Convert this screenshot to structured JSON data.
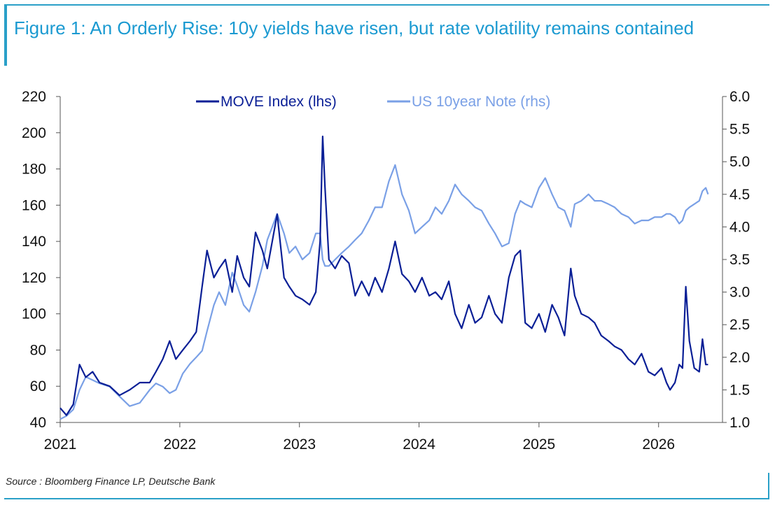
{
  "title": "Figure 1: An Orderly Rise: 10y yields have risen, but rate volatility remains contained",
  "source": "Source : Bloomberg Finance LP, Deutsche Bank",
  "colors": {
    "accent": "#1b9ad1",
    "move": "#0a1f96",
    "yield": "#7aa0e6"
  },
  "chart_data": {
    "type": "line",
    "title": "",
    "xlabel": "",
    "ylabel_left": "",
    "ylabel_right": "",
    "x_range": [
      "2021-01-01",
      "2026-07-15"
    ],
    "x_ticks": [
      "2021",
      "2022",
      "2023",
      "2024",
      "2025",
      "2026"
    ],
    "y_left": {
      "range": [
        40,
        220
      ],
      "ticks": [
        "40",
        "60",
        "80",
        "100",
        "120",
        "140",
        "160",
        "180",
        "200",
        "220"
      ]
    },
    "y_right": {
      "range": [
        1.0,
        6.0
      ],
      "ticks": [
        "1.0",
        "1.5",
        "2.0",
        "2.5",
        "3.0",
        "3.5",
        "4.0",
        "4.5",
        "5.0",
        "5.5",
        "6.0"
      ]
    },
    "legend_position": "top-center",
    "grid": false,
    "series": [
      {
        "name": "MOVE Index (lhs)",
        "axis": "left",
        "color": "#0a1f96",
        "x": [
          "2021-01-01",
          "2021-01-20",
          "2021-02-10",
          "2021-03-01",
          "2021-03-20",
          "2021-04-10",
          "2021-05-01",
          "2021-06-01",
          "2021-07-01",
          "2021-08-01",
          "2021-09-01",
          "2021-10-01",
          "2021-10-20",
          "2021-11-10",
          "2021-12-01",
          "2021-12-20",
          "2022-01-10",
          "2022-02-01",
          "2022-02-20",
          "2022-03-10",
          "2022-03-25",
          "2022-04-15",
          "2022-05-01",
          "2022-05-20",
          "2022-06-10",
          "2022-06-25",
          "2022-07-15",
          "2022-08-01",
          "2022-08-20",
          "2022-09-10",
          "2022-09-25",
          "2022-10-10",
          "2022-10-25",
          "2022-11-15",
          "2022-12-01",
          "2022-12-20",
          "2023-01-10",
          "2023-02-01",
          "2023-02-20",
          "2023-03-05",
          "2023-03-13",
          "2023-03-20",
          "2023-04-01",
          "2023-04-20",
          "2023-05-10",
          "2023-06-01",
          "2023-06-20",
          "2023-07-10",
          "2023-08-01",
          "2023-08-20",
          "2023-09-10",
          "2023-10-01",
          "2023-10-20",
          "2023-11-10",
          "2023-12-01",
          "2023-12-20",
          "2024-01-10",
          "2024-02-01",
          "2024-02-20",
          "2024-03-10",
          "2024-04-01",
          "2024-04-20",
          "2024-05-10",
          "2024-06-01",
          "2024-06-20",
          "2024-07-10",
          "2024-08-01",
          "2024-08-20",
          "2024-09-10",
          "2024-10-01",
          "2024-10-20",
          "2024-11-05",
          "2024-11-20",
          "2024-12-10",
          "2025-01-01",
          "2025-01-20",
          "2025-02-10",
          "2025-03-01",
          "2025-03-20",
          "2025-04-08",
          "2025-04-20",
          "2025-05-10",
          "2025-06-01",
          "2025-06-20",
          "2025-07-10",
          "2025-08-01",
          "2025-08-20",
          "2025-09-10",
          "2025-10-01",
          "2025-10-20",
          "2025-11-10",
          "2025-12-01",
          "2025-12-20",
          "2026-01-10",
          "2026-01-25",
          "2026-02-05",
          "2026-02-20",
          "2026-03-05",
          "2026-03-15",
          "2026-03-25",
          "2026-04-05",
          "2026-04-20",
          "2026-05-05",
          "2026-05-15",
          "2026-05-25",
          "2026-06-01"
        ],
        "y": [
          48,
          44,
          50,
          72,
          65,
          68,
          62,
          60,
          55,
          58,
          62,
          62,
          68,
          75,
          85,
          75,
          80,
          85,
          90,
          115,
          135,
          120,
          125,
          130,
          112,
          132,
          120,
          115,
          145,
          135,
          125,
          140,
          155,
          120,
          115,
          110,
          108,
          105,
          112,
          140,
          198,
          170,
          130,
          125,
          132,
          128,
          110,
          118,
          110,
          120,
          112,
          125,
          140,
          122,
          118,
          112,
          120,
          110,
          112,
          108,
          118,
          100,
          92,
          105,
          95,
          98,
          110,
          100,
          95,
          120,
          132,
          135,
          95,
          92,
          100,
          90,
          105,
          98,
          88,
          125,
          110,
          100,
          98,
          95,
          88,
          85,
          82,
          80,
          75,
          72,
          78,
          68,
          66,
          70,
          62,
          58,
          62,
          72,
          70,
          115,
          85,
          70,
          68,
          86,
          72,
          72
        ]
      },
      {
        "name": "US 10year Note (rhs)",
        "axis": "right",
        "color": "#7aa0e6",
        "x": [
          "2021-01-01",
          "2021-01-20",
          "2021-02-10",
          "2021-03-01",
          "2021-03-20",
          "2021-04-10",
          "2021-05-01",
          "2021-06-01",
          "2021-07-01",
          "2021-08-01",
          "2021-09-01",
          "2021-10-01",
          "2021-10-20",
          "2021-11-10",
          "2021-12-01",
          "2021-12-20",
          "2022-01-10",
          "2022-02-01",
          "2022-02-20",
          "2022-03-10",
          "2022-03-25",
          "2022-04-15",
          "2022-05-01",
          "2022-05-20",
          "2022-06-10",
          "2022-06-25",
          "2022-07-15",
          "2022-08-01",
          "2022-08-20",
          "2022-09-10",
          "2022-09-25",
          "2022-10-10",
          "2022-10-25",
          "2022-11-15",
          "2022-12-01",
          "2022-12-20",
          "2023-01-10",
          "2023-02-01",
          "2023-02-20",
          "2023-03-05",
          "2023-03-13",
          "2023-03-20",
          "2023-04-01",
          "2023-04-20",
          "2023-05-10",
          "2023-06-01",
          "2023-06-20",
          "2023-07-10",
          "2023-08-01",
          "2023-08-20",
          "2023-09-10",
          "2023-10-01",
          "2023-10-20",
          "2023-11-10",
          "2023-12-01",
          "2023-12-20",
          "2024-01-10",
          "2024-02-01",
          "2024-02-20",
          "2024-03-10",
          "2024-04-01",
          "2024-04-20",
          "2024-05-10",
          "2024-06-01",
          "2024-06-20",
          "2024-07-10",
          "2024-08-01",
          "2024-08-20",
          "2024-09-10",
          "2024-10-01",
          "2024-10-20",
          "2024-11-05",
          "2024-11-20",
          "2024-12-10",
          "2025-01-01",
          "2025-01-20",
          "2025-02-10",
          "2025-03-01",
          "2025-03-20",
          "2025-04-08",
          "2025-04-20",
          "2025-05-10",
          "2025-06-01",
          "2025-06-20",
          "2025-07-10",
          "2025-08-01",
          "2025-08-20",
          "2025-09-10",
          "2025-10-01",
          "2025-10-20",
          "2025-11-10",
          "2025-12-01",
          "2025-12-20",
          "2026-01-10",
          "2026-01-25",
          "2026-02-05",
          "2026-02-20",
          "2026-03-05",
          "2026-03-15",
          "2026-03-25",
          "2026-04-05",
          "2026-04-20",
          "2026-05-05",
          "2026-05-15",
          "2026-05-25",
          "2026-06-01"
        ],
        "y": [
          1.05,
          1.1,
          1.2,
          1.5,
          1.7,
          1.65,
          1.6,
          1.55,
          1.4,
          1.25,
          1.3,
          1.5,
          1.6,
          1.55,
          1.45,
          1.5,
          1.75,
          1.9,
          2.0,
          2.1,
          2.4,
          2.8,
          3.0,
          2.8,
          3.3,
          3.1,
          2.8,
          2.7,
          3.0,
          3.4,
          3.8,
          4.0,
          4.2,
          3.9,
          3.6,
          3.7,
          3.5,
          3.6,
          3.9,
          3.9,
          3.5,
          3.4,
          3.4,
          3.5,
          3.6,
          3.7,
          3.8,
          3.9,
          4.1,
          4.3,
          4.3,
          4.7,
          4.95,
          4.5,
          4.25,
          3.9,
          4.0,
          4.1,
          4.3,
          4.2,
          4.4,
          4.65,
          4.5,
          4.4,
          4.3,
          4.25,
          4.05,
          3.9,
          3.7,
          3.75,
          4.2,
          4.4,
          4.35,
          4.3,
          4.6,
          4.75,
          4.5,
          4.3,
          4.25,
          4.0,
          4.35,
          4.4,
          4.5,
          4.4,
          4.4,
          4.35,
          4.3,
          4.2,
          4.15,
          4.05,
          4.1,
          4.1,
          4.15,
          4.15,
          4.2,
          4.2,
          4.15,
          4.05,
          4.1,
          4.25,
          4.3,
          4.35,
          4.4,
          4.55,
          4.6,
          4.5
        ]
      }
    ]
  }
}
